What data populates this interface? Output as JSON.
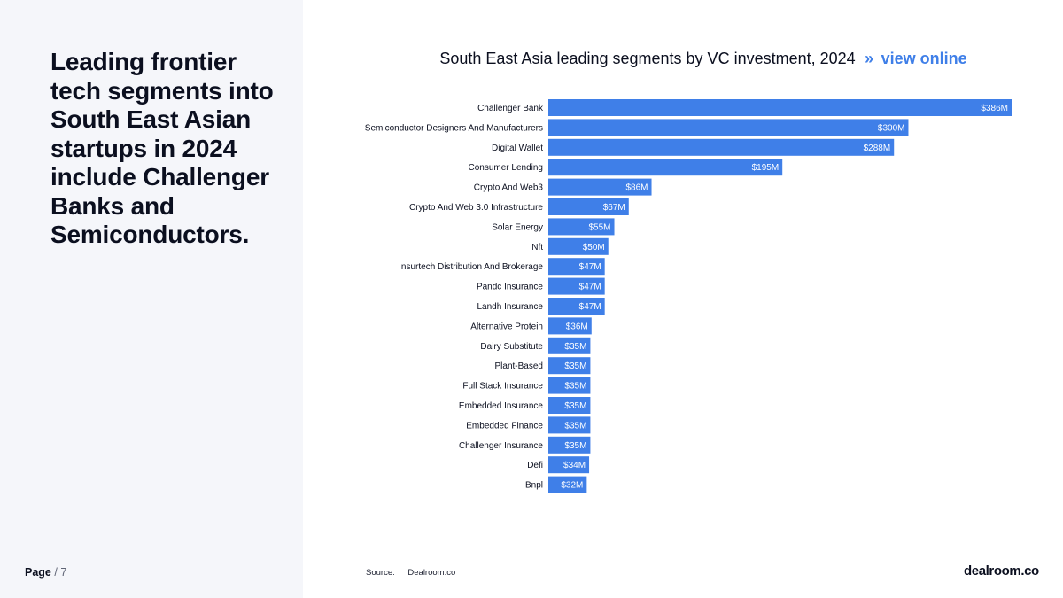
{
  "headline": "Leading frontier tech segments into South East Asian startups in 2024 include Challenger Banks and Semiconductors.",
  "page": {
    "label": "Page",
    "separator": "/",
    "number": "7"
  },
  "chart_header": {
    "title": "South East Asia leading segments by VC investment, 2024",
    "link_arrow": "»",
    "link_label": "view online"
  },
  "source": {
    "label": "Source:",
    "value": "Dealroom.co"
  },
  "logo": "dealroom.co",
  "colors": {
    "bar": "#3f7fe8",
    "bar_label": "#ffffff",
    "text": "#0b0f1f",
    "panel_bg": "#f5f6fa",
    "link": "#3f7fe8"
  },
  "chart_data": {
    "type": "bar",
    "orientation": "horizontal",
    "title": "South East Asia leading segments by VC investment, 2024",
    "unit": "$M",
    "categories": [
      "Challenger Bank",
      "Semiconductor Designers And Manufacturers",
      "Digital Wallet",
      "Consumer Lending",
      "Crypto And Web3",
      "Crypto And Web 3.0 Infrastructure",
      "Solar Energy",
      "Nft",
      "Insurtech Distribution And Brokerage",
      "Pandc Insurance",
      "Landh Insurance",
      "Alternative Protein",
      "Dairy Substitute",
      "Plant-Based",
      "Full Stack Insurance",
      "Embedded Insurance",
      "Embedded Finance",
      "Challenger Insurance",
      "Defi",
      "Bnpl"
    ],
    "values": [
      386,
      300,
      288,
      195,
      86,
      67,
      55,
      50,
      47,
      47,
      47,
      36,
      35,
      35,
      35,
      35,
      35,
      35,
      34,
      32
    ],
    "value_labels": [
      "$386M",
      "$300M",
      "$288M",
      "$195M",
      "$86M",
      "$67M",
      "$55M",
      "$50M",
      "$47M",
      "$47M",
      "$47M",
      "$36M",
      "$35M",
      "$35M",
      "$35M",
      "$35M",
      "$35M",
      "$35M",
      "$34M",
      "$32M"
    ],
    "xlim": [
      0,
      386
    ],
    "grid": false,
    "legend": "none"
  }
}
